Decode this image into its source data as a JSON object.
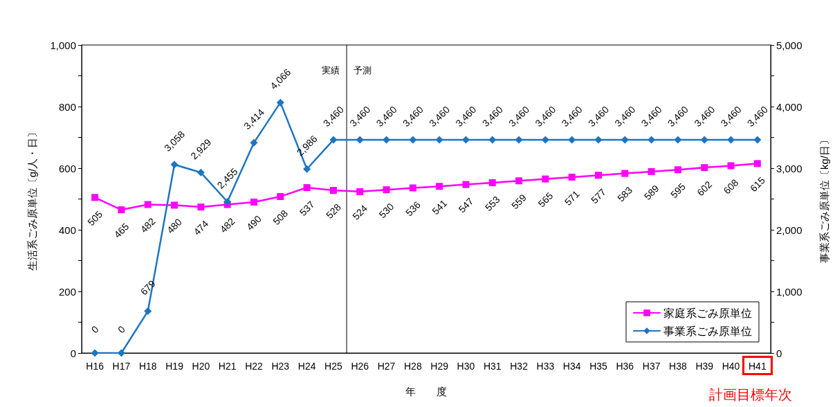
{
  "chart_data": {
    "type": "line",
    "categories": [
      "H16",
      "H17",
      "H18",
      "H19",
      "H20",
      "H21",
      "H22",
      "H23",
      "H24",
      "H25",
      "H26",
      "H27",
      "H28",
      "H29",
      "H30",
      "H31",
      "H32",
      "H33",
      "H34",
      "H35",
      "H36",
      "H37",
      "H38",
      "H39",
      "H40",
      "H41"
    ],
    "xlabel": "年　　度",
    "ylabel": "生活系ごみ原単位〔g/人・日〕",
    "y2label": "事業系ごみ原単位〔kg/日〕",
    "series": [
      {
        "name": "家庭系ごみ原単位",
        "color": "#ff00ff",
        "marker": "square",
        "values": [
          505,
          465,
          482,
          480,
          474,
          482,
          490,
          508,
          537,
          528,
          524,
          530,
          536,
          541,
          547,
          553,
          559,
          565,
          571,
          577,
          583,
          589,
          595,
          602,
          608,
          615
        ],
        "value_labels": [
          "505",
          "465",
          "482",
          "480",
          "474",
          "482",
          "490",
          "508",
          "537",
          "528",
          "524",
          "530",
          "536",
          "541",
          "547",
          "553",
          "559",
          "565",
          "571",
          "577",
          "583",
          "589",
          "595",
          "602",
          "608",
          "615"
        ]
      },
      {
        "name": "事業系ごみ原単位",
        "color": "#1e74c2",
        "marker": "diamond",
        "axis": "y2",
        "values": [
          0,
          0,
          679,
          3058,
          2929,
          2455,
          3414,
          4066,
          2986,
          3460,
          3460,
          3460,
          3460,
          3460,
          3460,
          3460,
          3460,
          3460,
          3460,
          3460,
          3460,
          3460,
          3460,
          3460,
          3460,
          3460
        ],
        "value_labels": [
          "0",
          "0",
          "679",
          "3,058",
          "2,929",
          "2,455",
          "3,414",
          "4,066",
          "2,986",
          "3,460",
          "3,460",
          "3,460",
          "3,460",
          "3,460",
          "3,460",
          "3,460",
          "3,460",
          "3,460",
          "3,460",
          "3,460",
          "3,460",
          "3,460",
          "3,460",
          "3,460",
          "3,460",
          "3,460"
        ]
      }
    ],
    "ylim": [
      0,
      1000
    ],
    "yticks": [
      0,
      {
        "value": 100,
        "label": null
      },
      200,
      {
        "value": 300,
        "label": null
      },
      400,
      {
        "value": 500,
        "label": null
      },
      600,
      {
        "value": 700,
        "label": null
      },
      800,
      {
        "value": 900,
        "label": null
      },
      {
        "value": 1000,
        "label": "1,000"
      }
    ],
    "y2lim": [
      0,
      5000
    ],
    "y2ticks": [
      0,
      {
        "value": 500,
        "label": null
      },
      {
        "value": 1000,
        "label": "1,000"
      },
      {
        "value": 1500,
        "label": null
      },
      {
        "value": 2000,
        "label": "2,000"
      },
      {
        "value": 2500,
        "label": null
      },
      {
        "value": 3000,
        "label": "3,000"
      },
      {
        "value": 3500,
        "label": null
      },
      {
        "value": 4000,
        "label": "4,000"
      },
      {
        "value": 4500,
        "label": null
      },
      {
        "value": 5000,
        "label": "5,000"
      }
    ],
    "annotations": [
      "実績",
      "予測",
      "計画目標年次"
    ],
    "legend": "bottom right"
  }
}
